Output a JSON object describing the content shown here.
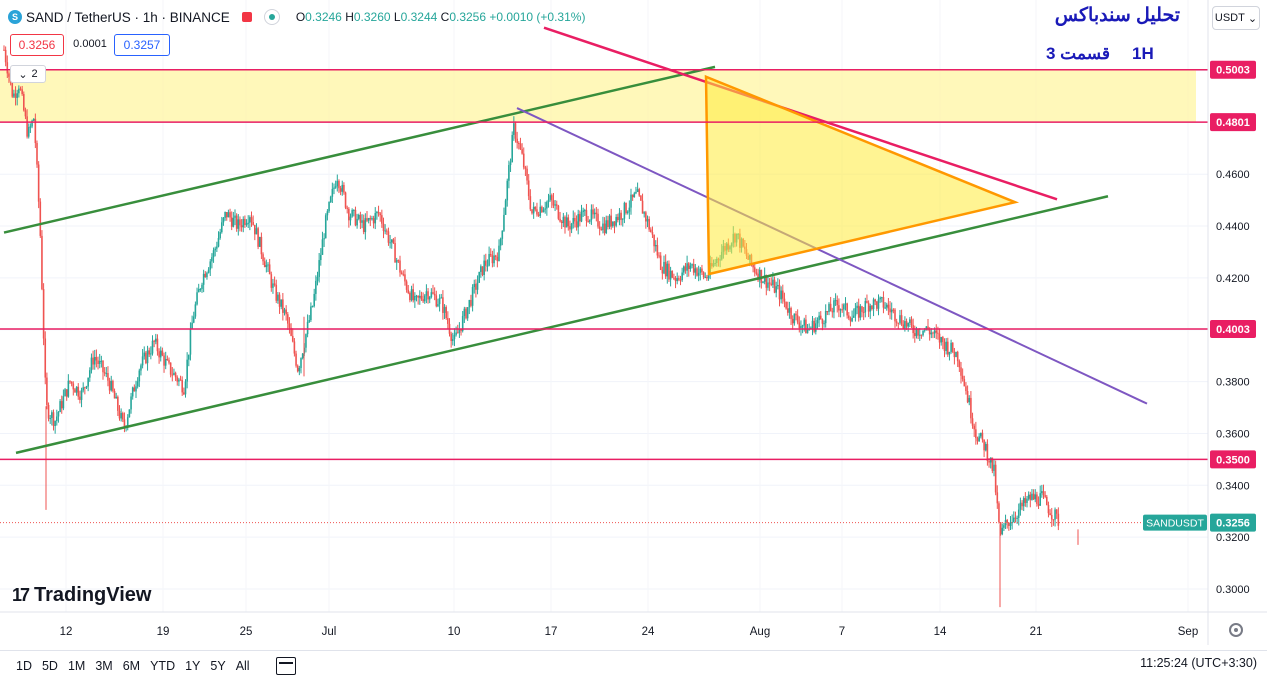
{
  "header": {
    "symbol_text": "SAND / TetherUS · 1h · BINANCE",
    "logo_text": "S",
    "ohlc": {
      "o_label": "O",
      "o": "0.3246",
      "h_label": "H",
      "h": "0.3260",
      "l_label": "L",
      "l": "0.3244",
      "c_label": "C",
      "c": "0.3256",
      "change": "+0.0010 (+0.31%)"
    }
  },
  "trade": {
    "sell": "0.3256",
    "spread": "0.0001",
    "buy": "0.3257"
  },
  "indicators_collapse": {
    "count": "2"
  },
  "currency_button": "USDT",
  "annotation": {
    "title": "تحلیل سندباکس",
    "part": "قسمت 3",
    "timeframe": "1H"
  },
  "brand": {
    "name": "TradingView",
    "mark": "17"
  },
  "ranges": [
    "1D",
    "5D",
    "1M",
    "3M",
    "6M",
    "YTD",
    "1Y",
    "5Y",
    "All"
  ],
  "clock": "11:25:24 (UTC+3:30)",
  "colors": {
    "up": "#26a69a",
    "down": "#ef5350",
    "level": "#e91e63",
    "channel": "#388e3c",
    "trend": "#7e57c2",
    "triangle": "#ff9800",
    "zone": "#fff59d"
  },
  "chart_data": {
    "type": "candlestick",
    "title": "SAND / TetherUS · 1h · BINANCE",
    "y_axis": {
      "min": 0.292,
      "max": 0.5165,
      "ticks": [
        0.3,
        0.32,
        0.34,
        0.36,
        0.38,
        0.4,
        0.42,
        0.44,
        0.46,
        0.48,
        0.5
      ]
    },
    "x_axis": {
      "ticks": [
        "12",
        "19",
        "25",
        "Jul",
        "10",
        "17",
        "24",
        "Aug",
        "7",
        "14",
        "21",
        "Sep"
      ]
    },
    "price_path": [
      {
        "t": 0,
        "p": 0.508
      },
      {
        "t": 3,
        "p": 0.49
      },
      {
        "t": 5,
        "p": 0.495
      },
      {
        "t": 8,
        "p": 0.475
      },
      {
        "t": 10,
        "p": 0.482
      },
      {
        "t": 12,
        "p": 0.44
      },
      {
        "t": 14,
        "p": 0.37
      },
      {
        "t": 17,
        "p": 0.365
      },
      {
        "t": 22,
        "p": 0.38
      },
      {
        "t": 26,
        "p": 0.375
      },
      {
        "t": 30,
        "p": 0.39
      },
      {
        "t": 35,
        "p": 0.38
      },
      {
        "t": 40,
        "p": 0.362
      },
      {
        "t": 45,
        "p": 0.385
      },
      {
        "t": 50,
        "p": 0.395
      },
      {
        "t": 55,
        "p": 0.385
      },
      {
        "t": 60,
        "p": 0.378
      },
      {
        "t": 63,
        "p": 0.405
      },
      {
        "t": 66,
        "p": 0.42
      },
      {
        "t": 70,
        "p": 0.43
      },
      {
        "t": 74,
        "p": 0.445
      },
      {
        "t": 78,
        "p": 0.44
      },
      {
        "t": 82,
        "p": 0.445
      },
      {
        "t": 86,
        "p": 0.43
      },
      {
        "t": 90,
        "p": 0.415
      },
      {
        "t": 94,
        "p": 0.405
      },
      {
        "t": 98,
        "p": 0.385
      },
      {
        "t": 103,
        "p": 0.41
      },
      {
        "t": 107,
        "p": 0.44
      },
      {
        "t": 111,
        "p": 0.46
      },
      {
        "t": 115,
        "p": 0.445
      },
      {
        "t": 120,
        "p": 0.44
      },
      {
        "t": 125,
        "p": 0.445
      },
      {
        "t": 130,
        "p": 0.43
      },
      {
        "t": 133,
        "p": 0.42
      },
      {
        "t": 137,
        "p": 0.41
      },
      {
        "t": 141,
        "p": 0.415
      },
      {
        "t": 146,
        "p": 0.41
      },
      {
        "t": 150,
        "p": 0.395
      },
      {
        "t": 155,
        "p": 0.41
      },
      {
        "t": 160,
        "p": 0.425
      },
      {
        "t": 165,
        "p": 0.43
      },
      {
        "t": 170,
        "p": 0.478
      },
      {
        "t": 173,
        "p": 0.465
      },
      {
        "t": 176,
        "p": 0.445
      },
      {
        "t": 182,
        "p": 0.45
      },
      {
        "t": 188,
        "p": 0.44
      },
      {
        "t": 194,
        "p": 0.445
      },
      {
        "t": 200,
        "p": 0.44
      },
      {
        "t": 206,
        "p": 0.445
      },
      {
        "t": 211,
        "p": 0.452
      },
      {
        "t": 215,
        "p": 0.44
      },
      {
        "t": 219,
        "p": 0.425
      },
      {
        "t": 224,
        "p": 0.42
      },
      {
        "t": 229,
        "p": 0.425
      },
      {
        "t": 234,
        "p": 0.42
      },
      {
        "t": 239,
        "p": 0.43
      },
      {
        "t": 244,
        "p": 0.437
      },
      {
        "t": 249,
        "p": 0.425
      },
      {
        "t": 253,
        "p": 0.42
      },
      {
        "t": 258,
        "p": 0.415
      },
      {
        "t": 263,
        "p": 0.405
      },
      {
        "t": 268,
        "p": 0.4
      },
      {
        "t": 273,
        "p": 0.405
      },
      {
        "t": 278,
        "p": 0.41
      },
      {
        "t": 283,
        "p": 0.405
      },
      {
        "t": 288,
        "p": 0.41
      },
      {
        "t": 293,
        "p": 0.41
      },
      {
        "t": 298,
        "p": 0.405
      },
      {
        "t": 303,
        "p": 0.4
      },
      {
        "t": 308,
        "p": 0.4
      },
      {
        "t": 313,
        "p": 0.395
      },
      {
        "t": 318,
        "p": 0.39
      },
      {
        "t": 321,
        "p": 0.375
      },
      {
        "t": 324,
        "p": 0.36
      },
      {
        "t": 327,
        "p": 0.355
      },
      {
        "t": 330,
        "p": 0.345
      },
      {
        "t": 332,
        "p": 0.32
      },
      {
        "t": 334,
        "p": 0.325
      },
      {
        "t": 338,
        "p": 0.33
      },
      {
        "t": 342,
        "p": 0.335
      },
      {
        "t": 346,
        "p": 0.335
      },
      {
        "t": 349,
        "p": 0.33
      },
      {
        "t": 352,
        "p": 0.3256
      }
    ],
    "levels": [
      {
        "value": 0.5003,
        "label": "0.5003"
      },
      {
        "value": 0.4801,
        "label": "0.4801"
      },
      {
        "value": 0.4003,
        "label": "0.4003"
      },
      {
        "value": 0.35,
        "label": "0.3500"
      }
    ],
    "zone": {
      "from": 0.4801,
      "to": 0.5003
    },
    "current": {
      "symbol": "SANDUSDT",
      "value": "0.3256"
    },
    "drawings": {
      "channel_upper": [
        {
          "t": 0,
          "p": 0.4375
        },
        {
          "t": 237,
          "p": 0.5014
        }
      ],
      "channel_lower": [
        {
          "t": 4,
          "p": 0.3525
        },
        {
          "t": 368,
          "p": 0.4515
        }
      ],
      "trend_down": [
        {
          "t": 171,
          "p": 0.4855
        },
        {
          "t": 381,
          "p": 0.3715
        }
      ],
      "trend_resistance": [
        {
          "t": 180,
          "p": 0.5165
        },
        {
          "t": 351,
          "p": 0.4503
        }
      ],
      "triangle": [
        {
          "t": 234,
          "p": 0.4976
        },
        {
          "t": 337,
          "p": 0.4492
        },
        {
          "t": 235,
          "p": 0.4215
        }
      ]
    }
  }
}
